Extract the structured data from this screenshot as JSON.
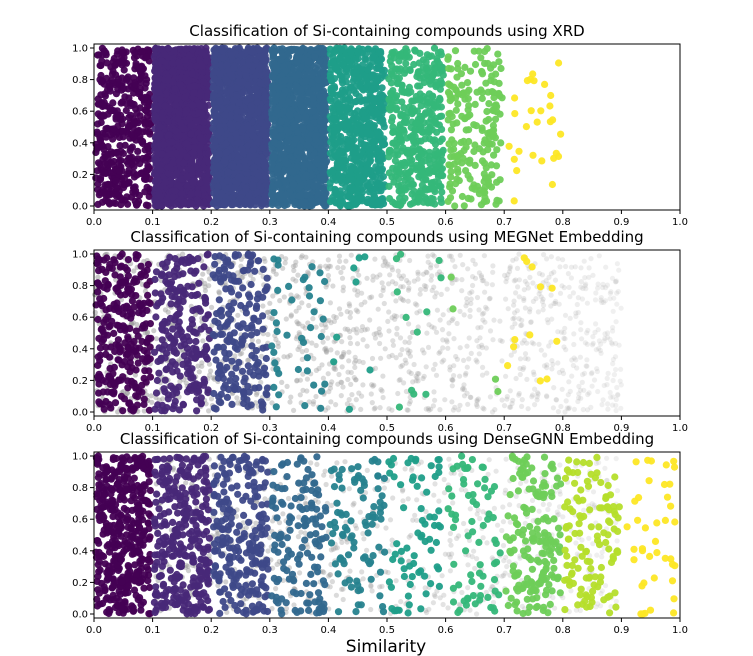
{
  "chart_data": {
    "type": "scatter",
    "xlabel": "Similarity",
    "x_ticks": [
      "0.0",
      "0.1",
      "0.2",
      "0.3",
      "0.4",
      "0.5",
      "0.6",
      "0.7",
      "0.8",
      "0.9",
      "1.0"
    ],
    "y_ticks": [
      "0.0",
      "0.2",
      "0.4",
      "0.6",
      "0.8",
      "1.0"
    ],
    "xlim": [
      0,
      1
    ],
    "ylim": [
      0,
      1
    ],
    "grid": false,
    "legend": "none",
    "palette": [
      "#440154",
      "#482878",
      "#3e4989",
      "#31688e",
      "#26828e",
      "#1f9e89",
      "#35b779",
      "#6ece58",
      "#b5de2b",
      "#fde725"
    ],
    "gray_color": "#9a9a9a",
    "panels": [
      {
        "id": "xrd",
        "title": "Classification of Si-containing compounds using XRD",
        "bins": [
          {
            "range": [
              0.0,
              0.1
            ],
            "color": "#440154",
            "count": 420
          },
          {
            "range": [
              0.1,
              0.2
            ],
            "color": "#482878",
            "count": 1600
          },
          {
            "range": [
              0.2,
              0.3
            ],
            "color": "#3e4989",
            "count": 1600
          },
          {
            "range": [
              0.3,
              0.4
            ],
            "color": "#31688e",
            "count": 1300
          },
          {
            "range": [
              0.4,
              0.5
            ],
            "color": "#1f9e89",
            "count": 700
          },
          {
            "range": [
              0.5,
              0.6
            ],
            "color": "#35b779",
            "count": 420
          },
          {
            "range": [
              0.6,
              0.7
            ],
            "color": "#6ece58",
            "count": 200
          },
          {
            "range": [
              0.7,
              0.8
            ],
            "color": "#fde725",
            "count": 28
          }
        ],
        "gray_count": 0
      },
      {
        "id": "megnet",
        "title": "Classification of Si-containing compounds using MEGNet Embedding",
        "bins": [
          {
            "range": [
              0.0,
              0.1
            ],
            "color": "#440154",
            "count": 260
          },
          {
            "range": [
              0.1,
              0.2
            ],
            "color": "#482878",
            "count": 220
          },
          {
            "range": [
              0.2,
              0.3
            ],
            "color": "#3e4989",
            "count": 190
          },
          {
            "range": [
              0.3,
              0.4
            ],
            "color": "#26828e",
            "count": 40
          },
          {
            "range": [
              0.4,
              0.5
            ],
            "color": "#1f9e89",
            "count": 8
          },
          {
            "range": [
              0.5,
              0.6
            ],
            "color": "#35b779",
            "count": 12
          },
          {
            "range": [
              0.6,
              0.7
            ],
            "color": "#6ece58",
            "count": 4
          },
          {
            "range": [
              0.7,
              0.8
            ],
            "color": "#fde725",
            "count": 12
          }
        ],
        "gray_range": [
          0.0,
          0.9
        ],
        "gray_count": 1400
      },
      {
        "id": "densegnn",
        "title": "Classification of Si-containing compounds using DenseGNN Embedding",
        "bins": [
          {
            "range": [
              0.0,
              0.1
            ],
            "color": "#440154",
            "count": 420
          },
          {
            "range": [
              0.1,
              0.2
            ],
            "color": "#482878",
            "count": 320
          },
          {
            "range": [
              0.2,
              0.3
            ],
            "color": "#3e4989",
            "count": 230
          },
          {
            "range": [
              0.3,
              0.4
            ],
            "color": "#31688e",
            "count": 140
          },
          {
            "range": [
              0.4,
              0.5
            ],
            "color": "#26828e",
            "count": 90
          },
          {
            "range": [
              0.5,
              0.6
            ],
            "color": "#1f9e89",
            "count": 70
          },
          {
            "range": [
              0.6,
              0.7
            ],
            "color": "#35b779",
            "count": 70
          },
          {
            "range": [
              0.7,
              0.8
            ],
            "color": "#6ece58",
            "count": 170
          },
          {
            "range": [
              0.8,
              0.9
            ],
            "color": "#b5de2b",
            "count": 120
          },
          {
            "range": [
              0.9,
              1.0
            ],
            "color": "#fde725",
            "count": 40
          }
        ],
        "gray_range": [
          0.1,
          0.9
        ],
        "gray_count": 700
      }
    ]
  }
}
